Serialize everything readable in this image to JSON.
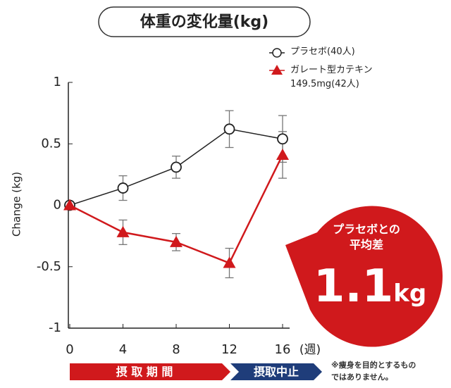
{
  "chart_data": {
    "type": "line",
    "title": "体重の変化量(kg)",
    "y_label": "Change (kg)",
    "x_label": "(週)",
    "x": [
      0,
      4,
      8,
      12,
      16
    ],
    "xlim": [
      0,
      16
    ],
    "xticks": [
      0,
      4,
      8,
      12,
      16
    ],
    "ylim": [
      -1,
      1
    ],
    "yticks": [
      1,
      0.5,
      0,
      -0.5,
      -1
    ],
    "series": [
      {
        "name": "プラセボ(40人)",
        "color": "#222222",
        "marker": "circle",
        "values": [
          0,
          0.14,
          0.31,
          0.62,
          0.54
        ],
        "errors": [
          null,
          0.1,
          0.09,
          0.15,
          0.19
        ]
      },
      {
        "name": "ガレート型カテキン\n149.5mg(42人)",
        "color": "#d0191c",
        "marker": "triangle",
        "values": [
          0,
          -0.22,
          -0.3,
          -0.47,
          0.41
        ],
        "errors": [
          null,
          0.1,
          0.07,
          0.12,
          0.19
        ]
      }
    ],
    "annotation": {
      "label": "プラセボとの\n平均差",
      "value": 1.1,
      "unit": "kg"
    },
    "phases": [
      "摂 取 期 間",
      "摂取中止"
    ],
    "note": "※痩身を目的とするもの\nではありません。"
  }
}
